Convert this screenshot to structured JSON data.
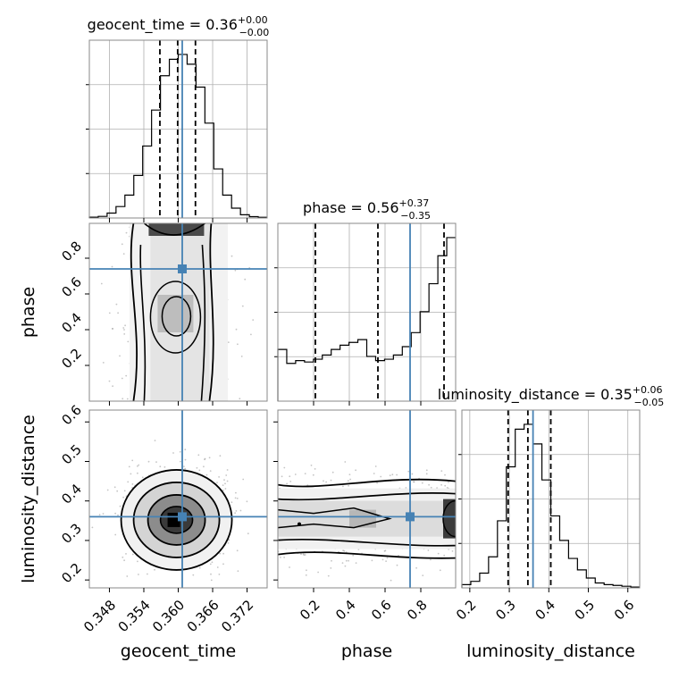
{
  "chart_data": {
    "type": "corner",
    "truth_color": "#4682b4",
    "dims": [
      {
        "name": "geocent_time",
        "range": [
          0.3445,
          0.3755
        ],
        "ticks": [
          0.348,
          0.354,
          0.36,
          0.366,
          0.372
        ],
        "tick_labels": [
          "0.348",
          "0.354",
          "0.360",
          "0.366",
          "0.372"
        ],
        "title": {
          "prefix": "geocent_time = 0.36",
          "sup": "+0.00",
          "sub": "−0.00"
        },
        "quantiles": [
          0.3568,
          0.3599,
          0.363
        ],
        "truth": 0.3607,
        "hist": [
          0.005,
          0.01,
          0.03,
          0.07,
          0.14,
          0.26,
          0.44,
          0.66,
          0.87,
          0.97,
          1.0,
          0.94,
          0.8,
          0.58,
          0.3,
          0.14,
          0.06,
          0.02,
          0.008,
          0.004
        ]
      },
      {
        "name": "phase",
        "range": [
          0.0,
          0.995
        ],
        "ticks": [
          0.2,
          0.4,
          0.6,
          0.8
        ],
        "tick_labels": [
          "0.2",
          "0.4",
          "0.6",
          "0.8"
        ],
        "title": {
          "prefix": "phase = 0.56",
          "sup": "+0.37",
          "sub": "−0.35"
        },
        "quantiles": [
          0.21,
          0.56,
          0.93
        ],
        "truth": 0.74,
        "hist": [
          0.37,
          0.27,
          0.29,
          0.28,
          0.3,
          0.33,
          0.37,
          0.4,
          0.42,
          0.44,
          0.32,
          0.29,
          0.3,
          0.33,
          0.39,
          0.49,
          0.64,
          0.84,
          1.04,
          1.17
        ]
      },
      {
        "name": "luminosity_distance",
        "range": [
          0.18,
          0.63
        ],
        "ticks": [
          0.2,
          0.3,
          0.4,
          0.5,
          0.6
        ],
        "tick_labels": [
          "0.2",
          "0.3",
          "0.4",
          "0.5",
          "0.6"
        ],
        "title": {
          "prefix": "luminosity_distance = 0.35",
          "sup": "+0.06",
          "sub": "−0.05"
        },
        "quantiles": [
          0.297,
          0.347,
          0.405
        ],
        "truth": 0.36,
        "hist": [
          0.02,
          0.04,
          0.09,
          0.19,
          0.41,
          0.74,
          0.97,
          1.0,
          0.88,
          0.66,
          0.44,
          0.29,
          0.18,
          0.11,
          0.06,
          0.03,
          0.02,
          0.015,
          0.01,
          0.005
        ]
      }
    ]
  }
}
